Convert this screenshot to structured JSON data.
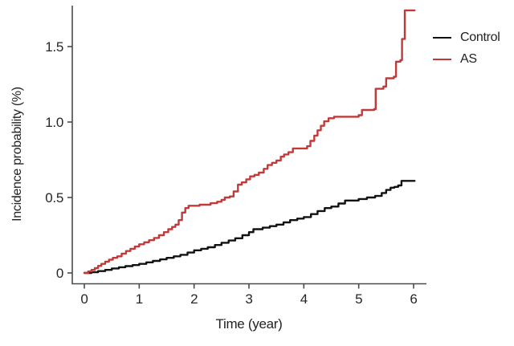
{
  "chart_data": {
    "type": "line",
    "subtype": "step",
    "title": "",
    "xlabel": "Time (year)",
    "ylabel": "Incidence probability (%)",
    "xlim": [
      0,
      6.2
    ],
    "ylim": [
      0,
      1.78
    ],
    "x_ticks": [
      0,
      1,
      2,
      3,
      4,
      5,
      6
    ],
    "x_tick_labels": [
      "0",
      "1",
      "2",
      "3",
      "4",
      "5",
      "6"
    ],
    "y_ticks": [
      0,
      0.5,
      1.0,
      1.5
    ],
    "y_tick_labels": [
      "0",
      "0.5",
      "1.0",
      "1.5"
    ],
    "grid": false,
    "legend_position": "top-right",
    "axis_color": "#4a4a4a",
    "series": [
      {
        "name": "Control",
        "color": "#111111",
        "points": [
          [
            0,
            0
          ],
          [
            0.13,
            0.005
          ],
          [
            0.25,
            0.012
          ],
          [
            0.38,
            0.02
          ],
          [
            0.5,
            0.03
          ],
          [
            0.63,
            0.038
          ],
          [
            0.75,
            0.045
          ],
          [
            0.88,
            0.052
          ],
          [
            1.0,
            0.06
          ],
          [
            1.13,
            0.07
          ],
          [
            1.25,
            0.08
          ],
          [
            1.38,
            0.09
          ],
          [
            1.5,
            0.1
          ],
          [
            1.63,
            0.11
          ],
          [
            1.75,
            0.12
          ],
          [
            1.88,
            0.135
          ],
          [
            2.0,
            0.15
          ],
          [
            2.13,
            0.16
          ],
          [
            2.25,
            0.17
          ],
          [
            2.38,
            0.185
          ],
          [
            2.5,
            0.2
          ],
          [
            2.63,
            0.215
          ],
          [
            2.75,
            0.23
          ],
          [
            2.88,
            0.25
          ],
          [
            3.0,
            0.27
          ],
          [
            3.08,
            0.29
          ],
          [
            3.25,
            0.3
          ],
          [
            3.38,
            0.31
          ],
          [
            3.5,
            0.32
          ],
          [
            3.63,
            0.335
          ],
          [
            3.75,
            0.35
          ],
          [
            3.88,
            0.36
          ],
          [
            4.0,
            0.37
          ],
          [
            4.13,
            0.39
          ],
          [
            4.25,
            0.41
          ],
          [
            4.38,
            0.43
          ],
          [
            4.5,
            0.44
          ],
          [
            4.63,
            0.46
          ],
          [
            4.75,
            0.48
          ],
          [
            5.0,
            0.49
          ],
          [
            5.15,
            0.5
          ],
          [
            5.3,
            0.51
          ],
          [
            5.42,
            0.53
          ],
          [
            5.5,
            0.55
          ],
          [
            5.58,
            0.565
          ],
          [
            5.65,
            0.57
          ],
          [
            5.72,
            0.58
          ],
          [
            5.78,
            0.61
          ],
          [
            6.02,
            0.61
          ]
        ]
      },
      {
        "name": "AS",
        "color": "#c13a3a",
        "points": [
          [
            0,
            0
          ],
          [
            0.07,
            0.01
          ],
          [
            0.13,
            0.02
          ],
          [
            0.19,
            0.032
          ],
          [
            0.25,
            0.047
          ],
          [
            0.31,
            0.06
          ],
          [
            0.38,
            0.075
          ],
          [
            0.45,
            0.088
          ],
          [
            0.52,
            0.1
          ],
          [
            0.6,
            0.11
          ],
          [
            0.68,
            0.128
          ],
          [
            0.76,
            0.145
          ],
          [
            0.84,
            0.16
          ],
          [
            0.92,
            0.175
          ],
          [
            1.0,
            0.19
          ],
          [
            1.09,
            0.203
          ],
          [
            1.18,
            0.217
          ],
          [
            1.27,
            0.232
          ],
          [
            1.36,
            0.25
          ],
          [
            1.45,
            0.27
          ],
          [
            1.53,
            0.29
          ],
          [
            1.6,
            0.305
          ],
          [
            1.66,
            0.32
          ],
          [
            1.72,
            0.35
          ],
          [
            1.78,
            0.4
          ],
          [
            1.84,
            0.43
          ],
          [
            1.9,
            0.445
          ],
          [
            2.1,
            0.452
          ],
          [
            2.3,
            0.462
          ],
          [
            2.42,
            0.472
          ],
          [
            2.5,
            0.484
          ],
          [
            2.56,
            0.5
          ],
          [
            2.65,
            0.507
          ],
          [
            2.72,
            0.54
          ],
          [
            2.8,
            0.585
          ],
          [
            2.87,
            0.6
          ],
          [
            2.95,
            0.62
          ],
          [
            3.02,
            0.64
          ],
          [
            3.1,
            0.65
          ],
          [
            3.18,
            0.665
          ],
          [
            3.27,
            0.69
          ],
          [
            3.34,
            0.715
          ],
          [
            3.42,
            0.73
          ],
          [
            3.5,
            0.745
          ],
          [
            3.58,
            0.77
          ],
          [
            3.64,
            0.785
          ],
          [
            3.72,
            0.8
          ],
          [
            3.8,
            0.825
          ],
          [
            4.06,
            0.84
          ],
          [
            4.12,
            0.875
          ],
          [
            4.19,
            0.91
          ],
          [
            4.25,
            0.945
          ],
          [
            4.31,
            0.975
          ],
          [
            4.37,
            1.005
          ],
          [
            4.45,
            1.025
          ],
          [
            4.55,
            1.035
          ],
          [
            5.0,
            1.045
          ],
          [
            5.06,
            1.08
          ],
          [
            5.28,
            1.085
          ],
          [
            5.31,
            1.22
          ],
          [
            5.45,
            1.235
          ],
          [
            5.5,
            1.29
          ],
          [
            5.64,
            1.3
          ],
          [
            5.68,
            1.4
          ],
          [
            5.76,
            1.41
          ],
          [
            5.79,
            1.55
          ],
          [
            5.84,
            1.74
          ],
          [
            6.02,
            1.74
          ]
        ]
      }
    ]
  },
  "legend": {
    "items": [
      {
        "label": "Control",
        "color": "#111111"
      },
      {
        "label": "AS",
        "color": "#c13a3a"
      }
    ]
  }
}
